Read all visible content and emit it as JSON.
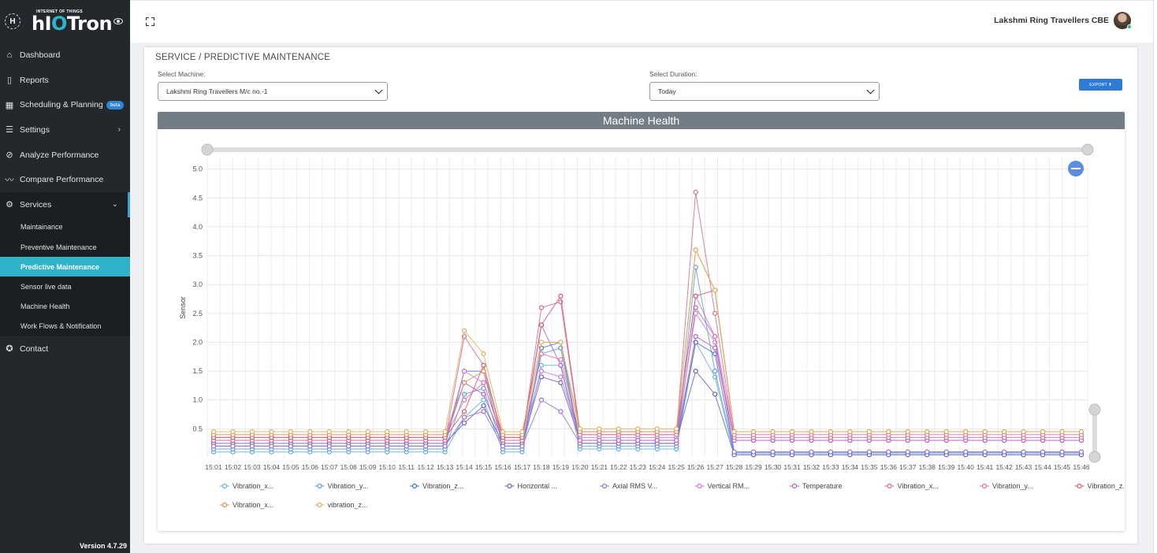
{
  "brand": {
    "mark": "H",
    "tag": "INTERNET OF THINGS",
    "name_prefix": "hI",
    "name_o": "O",
    "name_suffix": "Tron"
  },
  "sidebar": {
    "items": [
      {
        "label": "Dashboard",
        "icon": "home-icon"
      },
      {
        "label": "Reports",
        "icon": "book-icon"
      },
      {
        "label": "Scheduling & Planning",
        "icon": "calendar-icon",
        "badge": "beta"
      },
      {
        "label": "Settings",
        "icon": "list-icon"
      },
      {
        "label": "Analyze Performance",
        "icon": "compass-icon"
      },
      {
        "label": "Compare Performance",
        "icon": "trend-icon"
      },
      {
        "label": "Services",
        "icon": "gear-icon"
      },
      {
        "label": "Contact",
        "icon": "settings-icon"
      }
    ],
    "services_sub": [
      {
        "label": "Maintainance"
      },
      {
        "label": "Preventive Maintenance"
      },
      {
        "label": "Predictive Maintenance"
      },
      {
        "label": "Sensor live data"
      },
      {
        "label": "Machine Health"
      },
      {
        "label": "Work Flows & Notification"
      }
    ],
    "version": "Version 4.7.29"
  },
  "header": {
    "user_name": "Lakshmi Ring Travellers CBE"
  },
  "page": {
    "breadcrumb": "SERVICE / PREDICTIVE MAINTENANCE",
    "machine_label": "Select Machine:",
    "machine_value": "Lakshmi Ring Travellers M/c no.-1",
    "duration_label": "Select Duration:",
    "duration_value": "Today",
    "export_label": "EXPORT ⬆"
  },
  "chart_data": {
    "type": "line",
    "title": "Machine Health",
    "ylabel": "Sensor",
    "xlabel": "",
    "ylim": [
      0,
      5.2
    ],
    "yticks": [
      0.5,
      1.0,
      1.5,
      2.0,
      2.5,
      3.0,
      3.5,
      4.0,
      4.5,
      5.0
    ],
    "x": [
      "15:01",
      "15:02",
      "15:03",
      "15:04",
      "15:05",
      "15:06",
      "15:07",
      "15:08",
      "15:09",
      "15:10",
      "15:11",
      "15:12",
      "15:13",
      "15:14",
      "15:15",
      "15:16",
      "15:17",
      "15:18",
      "15:19",
      "15:20",
      "15:21",
      "15:22",
      "15:23",
      "15:24",
      "15:25",
      "15:26",
      "15:27",
      "15:28",
      "15:29",
      "15:30",
      "15:31",
      "15:32",
      "15:33",
      "15:34",
      "15:35",
      "15:36",
      "15:37",
      "15:38",
      "15:39",
      "15:40",
      "15:41",
      "15:42",
      "15:43",
      "15:44",
      "15:45",
      "15:46"
    ],
    "grid": true,
    "legend_position": "bottom",
    "series": [
      {
        "name": "Vibration_x...",
        "color": "#5fb4d8",
        "values": [
          0.1,
          0.1,
          0.1,
          0.1,
          0.1,
          0.1,
          0.1,
          0.1,
          0.1,
          0.1,
          0.1,
          0.1,
          0.1,
          0.7,
          1.0,
          0.1,
          0.1,
          1.6,
          1.6,
          0.15,
          0.15,
          0.15,
          0.15,
          0.15,
          0.15,
          2.0,
          1.4,
          0.05,
          0.05,
          0.05,
          0.05,
          0.05,
          0.05,
          0.05,
          0.05,
          0.05,
          0.05,
          0.05,
          0.05,
          0.05,
          0.05,
          0.05,
          0.05,
          0.05,
          0.05,
          0.05
        ]
      },
      {
        "name": "Vibration_y...",
        "color": "#5a9ad8",
        "values": [
          0.15,
          0.15,
          0.15,
          0.15,
          0.15,
          0.15,
          0.15,
          0.15,
          0.15,
          0.15,
          0.15,
          0.15,
          0.15,
          1.1,
          1.2,
          0.15,
          0.15,
          1.8,
          1.9,
          0.2,
          0.2,
          0.2,
          0.2,
          0.2,
          0.2,
          3.3,
          1.5,
          0.08,
          0.08,
          0.08,
          0.08,
          0.08,
          0.08,
          0.08,
          0.08,
          0.08,
          0.08,
          0.08,
          0.08,
          0.08,
          0.08,
          0.08,
          0.08,
          0.08,
          0.08,
          0.08
        ]
      },
      {
        "name": "Vibration_z...",
        "color": "#4a6fc8",
        "values": [
          0.2,
          0.2,
          0.2,
          0.2,
          0.2,
          0.2,
          0.2,
          0.2,
          0.2,
          0.2,
          0.2,
          0.2,
          0.2,
          1.5,
          1.5,
          0.2,
          0.2,
          1.9,
          2.0,
          0.25,
          0.25,
          0.25,
          0.25,
          0.25,
          0.25,
          2.0,
          1.8,
          0.1,
          0.1,
          0.1,
          0.1,
          0.1,
          0.1,
          0.1,
          0.1,
          0.1,
          0.1,
          0.1,
          0.1,
          0.1,
          0.1,
          0.1,
          0.1,
          0.1,
          0.1,
          0.1
        ]
      },
      {
        "name": "Horizontal ...",
        "color": "#6a5fb8",
        "values": [
          0.25,
          0.25,
          0.25,
          0.25,
          0.25,
          0.25,
          0.25,
          0.25,
          0.25,
          0.25,
          0.25,
          0.25,
          0.25,
          0.6,
          0.9,
          0.25,
          0.25,
          1.4,
          1.3,
          0.3,
          0.3,
          0.3,
          0.3,
          0.3,
          0.3,
          1.5,
          1.1,
          0.05,
          0.05,
          0.05,
          0.05,
          0.05,
          0.05,
          0.05,
          0.05,
          0.05,
          0.05,
          0.05,
          0.05,
          0.05,
          0.05,
          0.05,
          0.05,
          0.05,
          0.05,
          0.05
        ]
      },
      {
        "name": "Axial RMS V...",
        "color": "#9a6fd0",
        "values": [
          0.2,
          0.2,
          0.2,
          0.2,
          0.2,
          0.2,
          0.2,
          0.2,
          0.2,
          0.2,
          0.2,
          0.2,
          0.2,
          0.7,
          0.8,
          0.2,
          0.2,
          1.0,
          0.8,
          0.25,
          0.25,
          0.25,
          0.25,
          0.25,
          0.25,
          2.6,
          2.1,
          0.1,
          0.1,
          0.1,
          0.1,
          0.1,
          0.1,
          0.1,
          0.1,
          0.1,
          0.1,
          0.1,
          0.1,
          0.1,
          0.1,
          0.1,
          0.1,
          0.1,
          0.1,
          0.1
        ]
      },
      {
        "name": "Vertical RM...",
        "color": "#c779d0",
        "values": [
          0.3,
          0.3,
          0.3,
          0.3,
          0.3,
          0.3,
          0.3,
          0.3,
          0.3,
          0.3,
          0.3,
          0.3,
          0.3,
          1.5,
          1.3,
          0.3,
          0.3,
          1.5,
          1.4,
          0.35,
          0.35,
          0.35,
          0.35,
          0.35,
          0.35,
          2.5,
          2.0,
          0.3,
          0.3,
          0.3,
          0.3,
          0.3,
          0.3,
          0.3,
          0.3,
          0.3,
          0.3,
          0.3,
          0.3,
          0.3,
          0.3,
          0.3,
          0.3,
          0.3,
          0.3,
          0.3
        ]
      },
      {
        "name": "Temperature",
        "color": "#b25fc2",
        "values": [
          0.3,
          0.3,
          0.3,
          0.3,
          0.3,
          0.3,
          0.3,
          0.3,
          0.3,
          0.3,
          0.3,
          0.3,
          0.3,
          1.3,
          1.1,
          0.3,
          0.3,
          2.3,
          1.6,
          0.3,
          0.3,
          0.3,
          0.3,
          0.3,
          0.3,
          2.1,
          1.9,
          0.3,
          0.3,
          0.3,
          0.3,
          0.3,
          0.3,
          0.3,
          0.3,
          0.3,
          0.3,
          0.3,
          0.3,
          0.3,
          0.3,
          0.3,
          0.3,
          0.3,
          0.3,
          0.3
        ]
      },
      {
        "name": "Vibration_x...",
        "color": "#d9688f",
        "values": [
          0.3,
          0.3,
          0.3,
          0.3,
          0.3,
          0.3,
          0.3,
          0.3,
          0.3,
          0.3,
          0.3,
          0.3,
          0.3,
          2.1,
          1.6,
          0.3,
          0.3,
          2.6,
          2.7,
          0.4,
          0.4,
          0.4,
          0.4,
          0.4,
          0.4,
          4.6,
          2.5,
          0.35,
          0.35,
          0.35,
          0.35,
          0.35,
          0.35,
          0.35,
          0.35,
          0.35,
          0.35,
          0.35,
          0.35,
          0.35,
          0.35,
          0.35,
          0.35,
          0.35,
          0.35,
          0.35
        ]
      },
      {
        "name": "Vibration_y...",
        "color": "#e06fb0",
        "values": [
          0.35,
          0.35,
          0.35,
          0.35,
          0.35,
          0.35,
          0.35,
          0.35,
          0.35,
          0.35,
          0.35,
          0.35,
          0.35,
          1.0,
          1.3,
          0.35,
          0.35,
          1.8,
          1.7,
          0.4,
          0.4,
          0.4,
          0.4,
          0.4,
          0.4,
          2.8,
          2.1,
          0.4,
          0.4,
          0.4,
          0.4,
          0.4,
          0.4,
          0.4,
          0.4,
          0.4,
          0.4,
          0.4,
          0.4,
          0.4,
          0.4,
          0.4,
          0.4,
          0.4,
          0.4,
          0.4
        ]
      },
      {
        "name": "Vibration_z...",
        "color": "#d0566a",
        "values": [
          0.35,
          0.35,
          0.35,
          0.35,
          0.35,
          0.35,
          0.35,
          0.35,
          0.35,
          0.35,
          0.35,
          0.35,
          0.35,
          0.8,
          1.6,
          0.35,
          0.35,
          2.3,
          2.8,
          0.45,
          0.45,
          0.45,
          0.45,
          0.45,
          0.45,
          2.8,
          2.9,
          0.45,
          0.45,
          0.45,
          0.45,
          0.45,
          0.45,
          0.45,
          0.45,
          0.45,
          0.45,
          0.45,
          0.45,
          0.45,
          0.45,
          0.45,
          0.45,
          0.45,
          0.45,
          0.45
        ]
      },
      {
        "name": "Vibration_x...",
        "color": "#e08a55",
        "values": [
          0.4,
          0.4,
          0.4,
          0.4,
          0.4,
          0.4,
          0.4,
          0.4,
          0.4,
          0.4,
          0.4,
          0.4,
          0.4,
          1.3,
          1.5,
          0.4,
          0.4,
          2.0,
          2.0,
          0.45,
          0.45,
          0.45,
          0.45,
          0.45,
          0.45,
          3.6,
          2.9,
          0.45,
          0.45,
          0.45,
          0.45,
          0.45,
          0.45,
          0.45,
          0.45,
          0.45,
          0.45,
          0.45,
          0.45,
          0.45,
          0.45,
          0.45,
          0.45,
          0.45,
          0.45,
          0.45
        ]
      },
      {
        "name": "vibration_z...",
        "color": "#d8b25a",
        "values": [
          0.45,
          0.45,
          0.45,
          0.45,
          0.45,
          0.45,
          0.45,
          0.45,
          0.45,
          0.45,
          0.45,
          0.45,
          0.45,
          2.2,
          1.8,
          0.45,
          0.45,
          2.0,
          2.0,
          0.5,
          0.5,
          0.5,
          0.5,
          0.5,
          0.5,
          3.6,
          2.9,
          0.45,
          0.45,
          0.45,
          0.45,
          0.45,
          0.45,
          0.45,
          0.45,
          0.45,
          0.45,
          0.45,
          0.45,
          0.45,
          0.45,
          0.45,
          0.45,
          0.45,
          0.45,
          0.45
        ]
      }
    ]
  }
}
